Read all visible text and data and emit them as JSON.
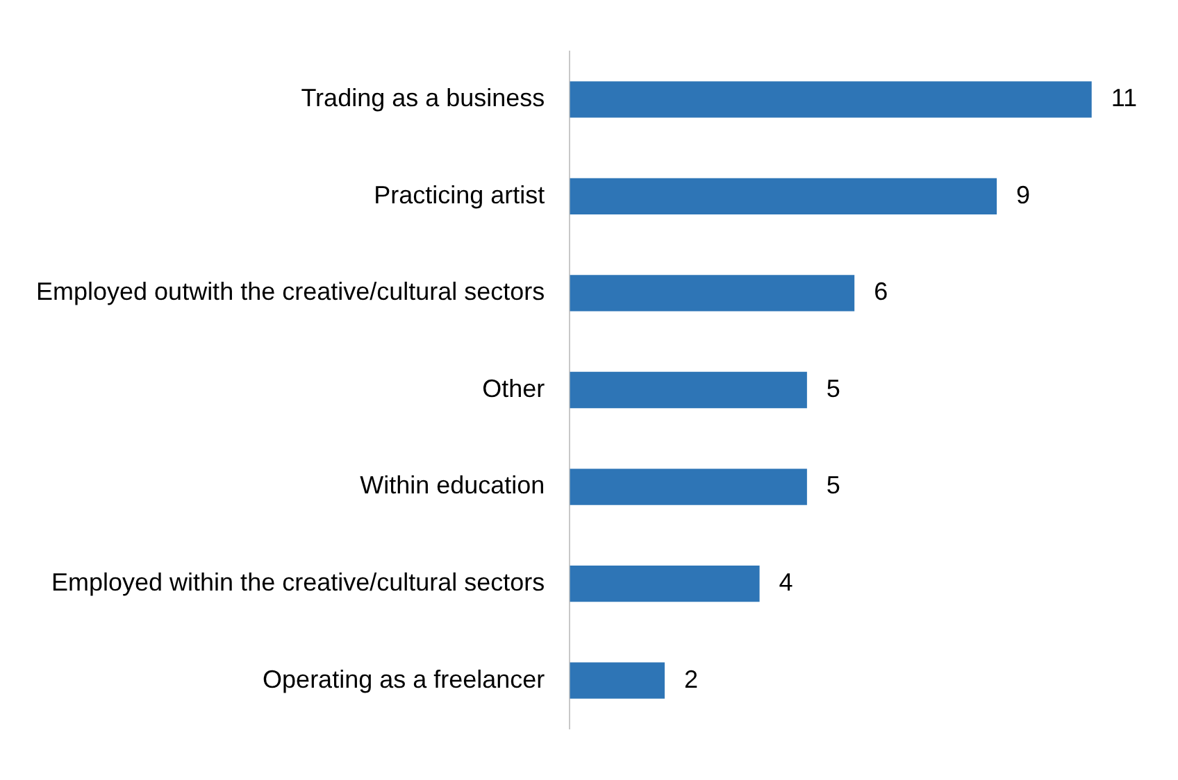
{
  "chart_data": {
    "type": "bar",
    "orientation": "horizontal",
    "categories": [
      "Trading as a business",
      "Practicing artist",
      "Employed outwith the creative/cultural sectors",
      "Other",
      "Within education",
      "Employed within the creative/cultural sectors",
      "Operating as a freelancer"
    ],
    "values": [
      11,
      9,
      6,
      5,
      5,
      4,
      2
    ],
    "color": "#2e75b6",
    "data_labels": true
  }
}
